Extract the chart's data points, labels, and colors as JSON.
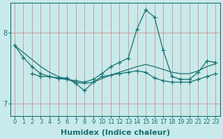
{
  "xlabel": "Humidex (Indice chaleur)",
  "background_color": "#c8eaea",
  "grid_color": "#d08080",
  "line_color": "#1a7070",
  "xlim": [
    -0.5,
    23.5
  ],
  "ylim": [
    6.82,
    8.42
  ],
  "yticks": [
    7,
    8
  ],
  "xticks": [
    0,
    1,
    2,
    3,
    4,
    5,
    6,
    7,
    8,
    9,
    10,
    11,
    12,
    13,
    14,
    15,
    16,
    17,
    18,
    19,
    20,
    21,
    22,
    23
  ],
  "line1_x": [
    0,
    1,
    2,
    3,
    4,
    5,
    6,
    7,
    8,
    9,
    10,
    11,
    12,
    13,
    14,
    15,
    16,
    17,
    18,
    19,
    20,
    21,
    22,
    23
  ],
  "line1_y": [
    7.82,
    7.72,
    7.62,
    7.52,
    7.44,
    7.38,
    7.34,
    7.3,
    7.28,
    7.3,
    7.35,
    7.4,
    7.44,
    7.48,
    7.52,
    7.55,
    7.52,
    7.48,
    7.44,
    7.42,
    7.42,
    7.46,
    7.52,
    7.56
  ],
  "line2_x": [
    0,
    1,
    2,
    3,
    4,
    5,
    6,
    7,
    8,
    9,
    10,
    11,
    12,
    13,
    14,
    15,
    16,
    17,
    18,
    19,
    20,
    21,
    22,
    23
  ],
  "line2_y": [
    7.82,
    7.65,
    7.52,
    7.42,
    7.38,
    7.35,
    7.34,
    7.32,
    7.3,
    7.34,
    7.42,
    7.52,
    7.58,
    7.64,
    8.05,
    8.32,
    8.22,
    7.75,
    7.38,
    7.34,
    7.34,
    7.44,
    7.6,
    7.58
  ],
  "line3_x": [
    2,
    3,
    4,
    5,
    6,
    7,
    8,
    9,
    10,
    11,
    12,
    13,
    14,
    15,
    16,
    17,
    18,
    19,
    20,
    21,
    22,
    23
  ],
  "line3_y": [
    7.42,
    7.38,
    7.38,
    7.36,
    7.36,
    7.28,
    7.18,
    7.3,
    7.38,
    7.4,
    7.42,
    7.44,
    7.46,
    7.44,
    7.36,
    7.32,
    7.3,
    7.3,
    7.3,
    7.34,
    7.38,
    7.42
  ],
  "marker_size": 4,
  "line_width": 0.9,
  "tick_fontsize": 6,
  "label_fontsize": 8
}
